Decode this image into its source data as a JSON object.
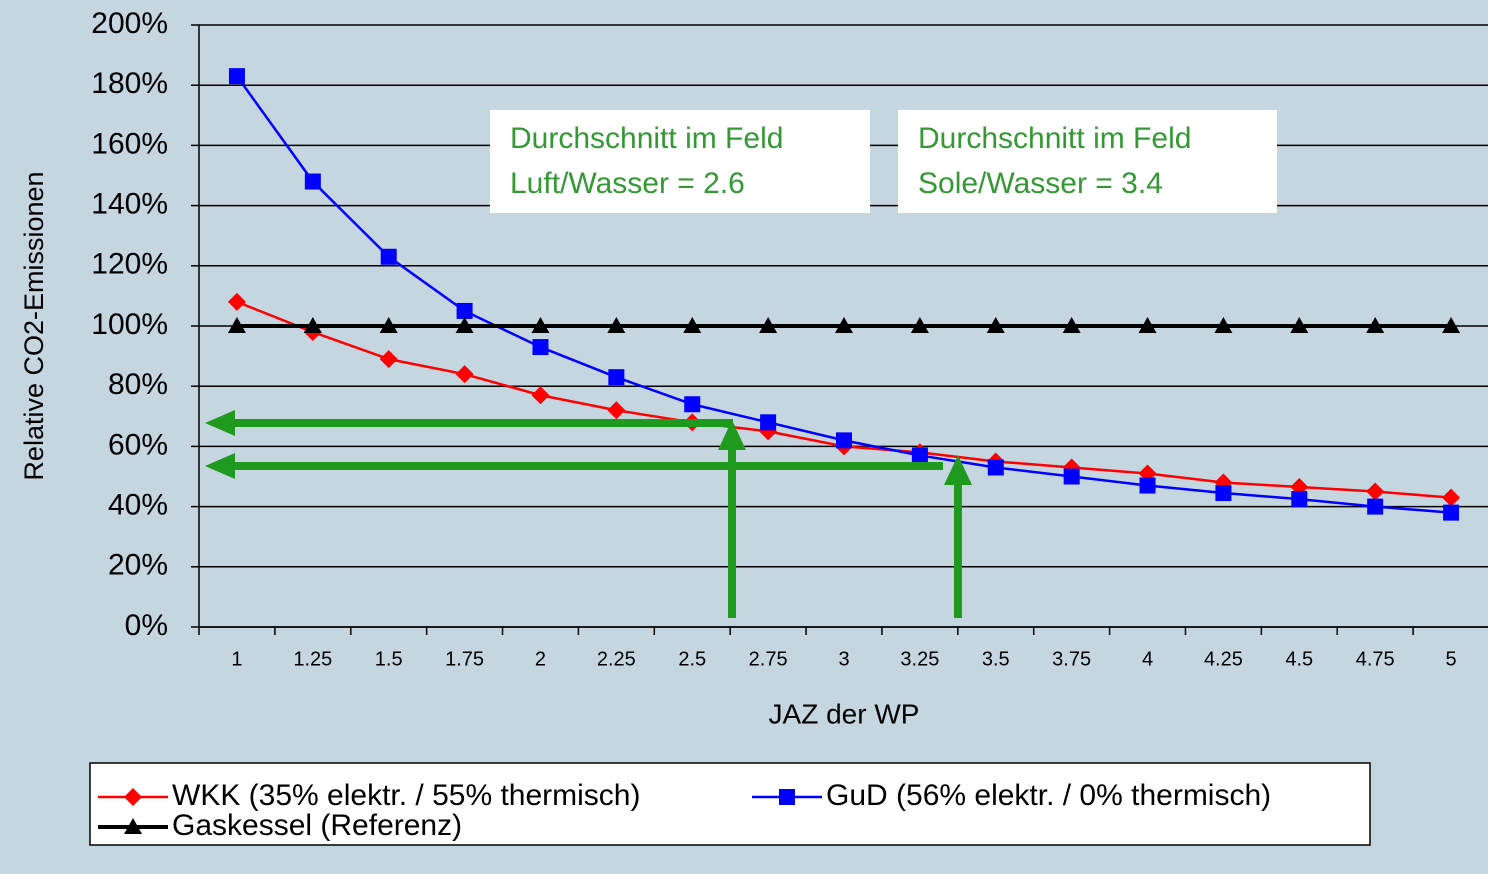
{
  "chart_data": {
    "type": "line",
    "x_label": "JAZ der WP",
    "y_label": "Relative CO2-Emissionen",
    "categories": [
      "1",
      "1.25",
      "1.5",
      "1.75",
      "2",
      "2.25",
      "2.5",
      "2.75",
      "3",
      "3.25",
      "3.5",
      "3.75",
      "4",
      "4.25",
      "4.5",
      "4.75",
      "5"
    ],
    "series": [
      {
        "name": "WKK (35% elektr. / 55% thermisch)",
        "color": "#ff0000",
        "marker": "diamond",
        "values": [
          108,
          98,
          89,
          84,
          77,
          72,
          68,
          65,
          60,
          58,
          55,
          53,
          51,
          48,
          46.5,
          45,
          43
        ]
      },
      {
        "name": "GuD (56% elektr. / 0% thermisch)",
        "color": "#0000ff",
        "marker": "square",
        "values": [
          183,
          148,
          123,
          105,
          93,
          83,
          74,
          68,
          62,
          57,
          53,
          50,
          47,
          44.5,
          42.5,
          40,
          38
        ]
      },
      {
        "name": "Gaskessel (Referenz)",
        "color": "#000000",
        "marker": "triangle",
        "values": [
          100,
          100,
          100,
          100,
          100,
          100,
          100,
          100,
          100,
          100,
          100,
          100,
          100,
          100,
          100,
          100,
          100
        ]
      }
    ],
    "ylim": [
      0,
      200
    ],
    "yticks": [
      {
        "value": 0,
        "label": "0%"
      },
      {
        "value": 20,
        "label": "20%"
      },
      {
        "value": 40,
        "label": "40%"
      },
      {
        "value": 60,
        "label": "60%"
      },
      {
        "value": 80,
        "label": "80%"
      },
      {
        "value": 100,
        "label": "100%"
      },
      {
        "value": 120,
        "label": "120%"
      },
      {
        "value": 140,
        "label": "140%"
      },
      {
        "value": 160,
        "label": "160%"
      },
      {
        "value": 180,
        "label": "180%"
      },
      {
        "value": 200,
        "label": "200%"
      }
    ],
    "grid": true,
    "legend": "bottom",
    "annotations": [
      {
        "lines": [
          "Durchschnitt im Feld",
          "Luft/Wasser = 2.6"
        ]
      },
      {
        "lines": [
          "Durchschnitt im Feld",
          "Sole/Wasser = 3.4"
        ]
      }
    ]
  }
}
